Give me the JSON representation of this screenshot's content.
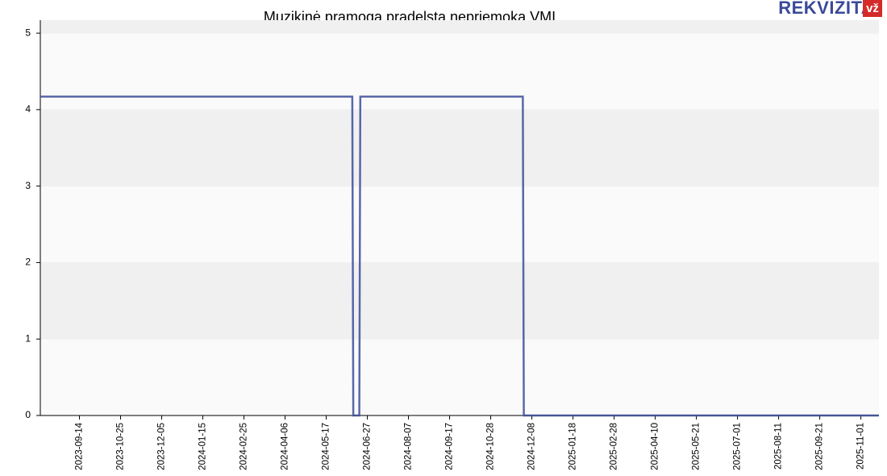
{
  "chart_data": {
    "type": "line",
    "title": "Muzikinė pramoga pradelsta nepriemoka VMI",
    "x": [
      "2023-08-06",
      "2024-06-12",
      "2024-06-13",
      "2024-06-19",
      "2024-06-20",
      "2024-11-29",
      "2024-11-30",
      "2025-11-19"
    ],
    "series": [
      {
        "color": "#3c4e9a",
        "values": [
          4.17,
          4.17,
          0,
          0,
          4.17,
          4.17,
          0,
          0
        ]
      }
    ],
    "xlim": [
      "2023-08-06",
      "2025-11-19"
    ],
    "xticks": [
      "2023-09-14",
      "2023-10-25",
      "2023-12-05",
      "2024-01-15",
      "2024-02-25",
      "2024-04-06",
      "2024-05-17",
      "2024-06-27",
      "2024-08-07",
      "2024-09-17",
      "2024-10-28",
      "2024-12-08",
      "2025-01-18",
      "2025-02-28",
      "2025-04-10",
      "2025-05-21",
      "2025-07-01",
      "2025-08-11",
      "2025-09-21",
      "2025-11-01"
    ],
    "ylim": [
      0,
      5.17
    ],
    "yticks": [
      0,
      1,
      2,
      3,
      4,
      5
    ],
    "grid": true
  },
  "logo": {
    "text": "REKVIZITAI",
    "badge": "vž"
  }
}
